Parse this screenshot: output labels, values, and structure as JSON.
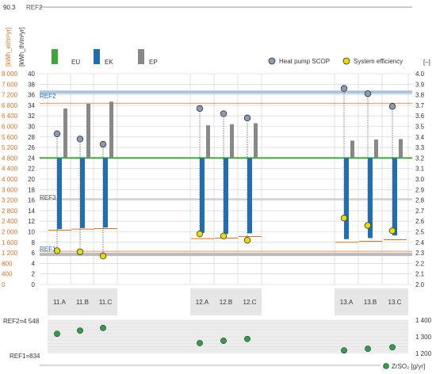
{
  "chart_data": {
    "type": "bar",
    "top_line_label": "90.3",
    "top_line_ref": "REF2",
    "left_axis_orange_label": "[kWh_el/m²yr]",
    "left_axis_gray_label": "[kWh_th/m²yr]",
    "right_axis_label": "[–]",
    "orange_ticks": [
      "8 000",
      "7 600",
      "7 200",
      "6 800",
      "6 400",
      "6 000",
      "5 600",
      "5 200",
      "4 800",
      "4 400",
      "4 000",
      "3 600",
      "3 200",
      "2 800",
      "2 400",
      "2 000",
      "1 600",
      "1 200",
      "800",
      "400",
      "0"
    ],
    "left_ticks": [
      "40",
      "38",
      "36",
      "34",
      "32",
      "30",
      "28",
      "26",
      "24",
      "22",
      "20",
      "18",
      "16",
      "14",
      "12",
      "10",
      "8",
      "6",
      "4",
      "2",
      "0"
    ],
    "right_ticks": [
      "4.0",
      "3.9",
      "3.8",
      "3.7",
      "3.6",
      "3.5",
      "3.4",
      "3.3",
      "3.2",
      "3.1",
      "3.0",
      "2.9",
      "2.8",
      "2.7",
      "2.6",
      "2.5",
      "2.4",
      "2.3",
      "2.2",
      "2.1",
      "2.0"
    ],
    "legend": {
      "eu": "EU",
      "ek": "EK",
      "ep": "EP",
      "scop": "Heat pump SCOP",
      "sys": "System efficiency"
    },
    "colors": {
      "eu": "#3aaa35",
      "ek": "#1f6fb2",
      "ep": "#888888",
      "scop": "#8a9bb5",
      "sys": "#e6dc00",
      "orange": "#e07020",
      "ref_band": "#aac4e0",
      "zrso": "#2e9e4a"
    },
    "ref_labels": {
      "ref2": "REF2",
      "ref1": "REF1",
      "ref3": "REF3"
    },
    "ref_values": {
      "ref2": 36.5,
      "ref1": 5.7,
      "ref3": 16.2,
      "orange_upper": 34.4,
      "orange_lower": 6.3
    },
    "eu_level": 24,
    "groups": [
      {
        "labels": [
          "11.A",
          "11.B",
          "11.C"
        ]
      },
      {
        "labels": [
          "12.A",
          "12.B",
          "12.C"
        ]
      },
      {
        "labels": [
          "13.A",
          "13.B",
          "13.C"
        ]
      }
    ],
    "categories": [
      "11.A",
      "11.B",
      "11.C",
      "12.A",
      "12.B",
      "12.C",
      "13.A",
      "13.B",
      "13.C"
    ],
    "series": [
      {
        "name": "EK",
        "values": [
          10.5,
          10.7,
          10.8,
          9.8,
          9.6,
          9.7,
          8.6,
          8.8,
          9.3
        ]
      },
      {
        "name": "EP",
        "values": [
          33.4,
          34.3,
          34.7,
          30.2,
          30.4,
          30.6,
          27.3,
          27.5,
          27.6
        ]
      },
      {
        "name": "orange_line",
        "values": [
          10.3,
          10.5,
          10.6,
          8.7,
          8.8,
          9.1,
          8.0,
          8.2,
          8.5
        ]
      },
      {
        "name": "Heat pump SCOP",
        "values": [
          3.43,
          3.38,
          3.33,
          3.67,
          3.62,
          3.58,
          3.86,
          3.81,
          3.69
        ]
      },
      {
        "name": "System efficiency",
        "values": [
          2.32,
          2.31,
          2.27,
          2.48,
          2.46,
          2.42,
          2.63,
          2.56,
          2.51
        ]
      },
      {
        "name": "ZrSO2",
        "values": [
          1318,
          1337,
          1353,
          1262,
          1276,
          1287,
          1218,
          1228,
          1237
        ]
      }
    ],
    "bottom_panel": {
      "ref2_label": "REF2=4 548",
      "ref1_label": "REF1=834",
      "right_ticks": [
        "1 400",
        "1 300",
        "1 200"
      ],
      "ylim": [
        1200,
        1400
      ],
      "legend": "ZrSO₂ [g/yr]"
    }
  }
}
